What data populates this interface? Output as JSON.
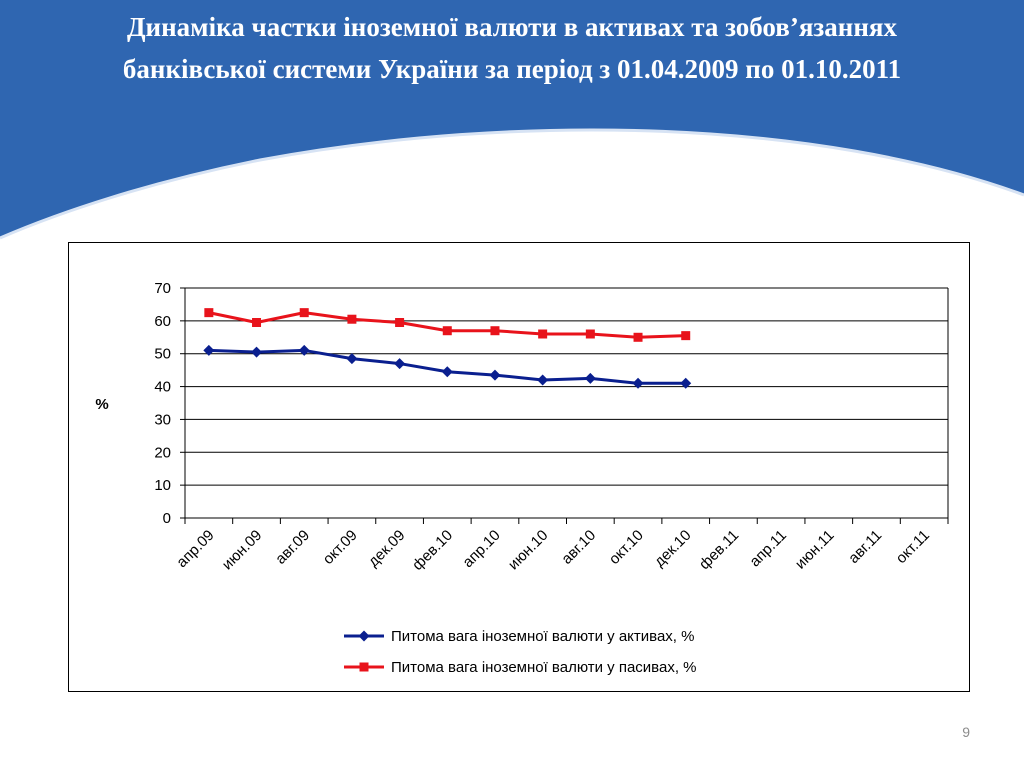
{
  "slide": {
    "title": "Динаміка частки іноземної валюти в активах та зобов’язаннях банківської системи України за період з 01.04.2009 по 01.10.2011",
    "page_number": "9"
  },
  "colors": {
    "banner": "#2f66b1",
    "assets_series": "#0a1f8f",
    "liabilities_series": "#e8131b"
  },
  "chart_data": {
    "type": "line",
    "ylabel": "%",
    "xlabel": "",
    "ylim": [
      0,
      70
    ],
    "yticks": [
      0,
      10,
      20,
      30,
      40,
      50,
      60,
      70
    ],
    "grid": true,
    "legend_position": "bottom",
    "categories": [
      "апр.09",
      "июн.09",
      "авг.09",
      "окт.09",
      "дек.09",
      "фев.10",
      "апр.10",
      "июн.10",
      "авг.10",
      "окт.10",
      "дек.10",
      "фев.11",
      "апр.11",
      "июн.11",
      "авг.11",
      "окт.11"
    ],
    "series": [
      {
        "name": "Питома вага іноземної валюти у активах, %",
        "marker": "diamond",
        "x": [
          "апр.09",
          "июн.09",
          "авг.09",
          "окт.09",
          "дек.09",
          "фев.10",
          "апр.10",
          "июн.10",
          "авг.10",
          "окт.10",
          "дек.10"
        ],
        "values": [
          51,
          50.5,
          51,
          48.5,
          47,
          44.5,
          43.5,
          42,
          42.5,
          41,
          41
        ]
      },
      {
        "name": "Питома вага іноземної валюти у пасивах, %",
        "marker": "square",
        "x": [
          "апр.09",
          "июн.09",
          "авг.09",
          "окт.09",
          "дек.09",
          "фев.10",
          "апр.10",
          "июн.10",
          "авг.10",
          "окт.10",
          "дек.10"
        ],
        "values": [
          62.5,
          59.5,
          62.5,
          60.5,
          59.5,
          57,
          57,
          56,
          56,
          55,
          55.5
        ]
      }
    ]
  }
}
